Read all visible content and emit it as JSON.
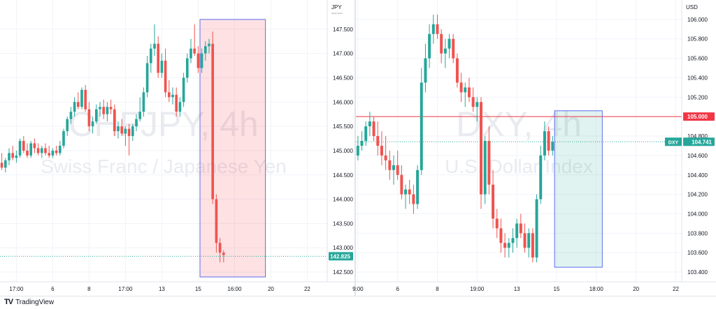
{
  "brand": {
    "logo_text": "TV",
    "name": "TradingView"
  },
  "chart_data": [
    {
      "type": "candlestick",
      "symbol": "CHFJPY, 4h",
      "description": "Swiss Franc / Japanese Yen",
      "currency": "JPY",
      "currency_sub": "Swiss Franc",
      "ylim": [
        142.3,
        148.1
      ],
      "y_ticks": [
        "147.500",
        "147.000",
        "146.500",
        "146.000",
        "145.500",
        "145.000",
        "144.500",
        "144.000",
        "143.500",
        "143.000",
        "142.500"
      ],
      "y_tick_values": [
        147.5,
        147.0,
        146.5,
        146.0,
        145.5,
        145.0,
        144.5,
        144.0,
        143.5,
        143.0,
        142.5
      ],
      "x_ticks": [
        "17:00",
        "6",
        "8",
        "17:00",
        "13",
        "15",
        "16:00",
        "20",
        "22"
      ],
      "x_tick_index": [
        4,
        14,
        24,
        34,
        44,
        54,
        64,
        74,
        84
      ],
      "n_slots": 90,
      "last_price": "142.825",
      "last_price_value": 142.825,
      "highlight": {
        "start": 55,
        "end": 72,
        "top": 147.7,
        "bottom": 142.4,
        "color": "red"
      },
      "candles": [
        {
          "o": 144.75,
          "h": 144.95,
          "l": 144.6,
          "c": 144.65
        },
        {
          "o": 144.65,
          "h": 144.85,
          "l": 144.55,
          "c": 144.8
        },
        {
          "o": 144.8,
          "h": 145.05,
          "l": 144.7,
          "c": 144.95
        },
        {
          "o": 144.95,
          "h": 145.1,
          "l": 144.8,
          "c": 144.85
        },
        {
          "o": 144.85,
          "h": 145.0,
          "l": 144.75,
          "c": 144.9
        },
        {
          "o": 144.9,
          "h": 145.25,
          "l": 144.85,
          "c": 145.2
        },
        {
          "o": 145.2,
          "h": 145.3,
          "l": 144.95,
          "c": 145.0
        },
        {
          "o": 145.0,
          "h": 145.15,
          "l": 144.85,
          "c": 144.9
        },
        {
          "o": 144.9,
          "h": 145.2,
          "l": 144.85,
          "c": 145.15
        },
        {
          "o": 145.15,
          "h": 145.25,
          "l": 144.95,
          "c": 145.05
        },
        {
          "o": 145.05,
          "h": 145.15,
          "l": 144.9,
          "c": 144.95
        },
        {
          "o": 144.95,
          "h": 145.1,
          "l": 144.85,
          "c": 145.05
        },
        {
          "o": 145.05,
          "h": 145.15,
          "l": 144.9,
          "c": 144.95
        },
        {
          "o": 144.95,
          "h": 145.1,
          "l": 144.85,
          "c": 144.9
        },
        {
          "o": 144.9,
          "h": 145.05,
          "l": 144.85,
          "c": 145.0
        },
        {
          "o": 145.0,
          "h": 145.1,
          "l": 144.9,
          "c": 144.95
        },
        {
          "o": 144.95,
          "h": 145.2,
          "l": 144.9,
          "c": 145.1
        },
        {
          "o": 145.1,
          "h": 145.45,
          "l": 145.05,
          "c": 145.4
        },
        {
          "o": 145.4,
          "h": 145.7,
          "l": 145.3,
          "c": 145.65
        },
        {
          "o": 145.65,
          "h": 145.9,
          "l": 145.55,
          "c": 145.8
        },
        {
          "o": 145.8,
          "h": 146.1,
          "l": 145.7,
          "c": 146.0
        },
        {
          "o": 146.0,
          "h": 146.2,
          "l": 145.85,
          "c": 145.9
        },
        {
          "o": 145.9,
          "h": 146.3,
          "l": 145.85,
          "c": 146.25
        },
        {
          "o": 146.25,
          "h": 146.35,
          "l": 145.8,
          "c": 145.85
        },
        {
          "o": 145.85,
          "h": 146.0,
          "l": 145.4,
          "c": 145.5
        },
        {
          "o": 145.5,
          "h": 145.7,
          "l": 145.35,
          "c": 145.6
        },
        {
          "o": 145.6,
          "h": 145.95,
          "l": 145.55,
          "c": 145.85
        },
        {
          "o": 145.85,
          "h": 146.0,
          "l": 145.7,
          "c": 145.9
        },
        {
          "o": 145.9,
          "h": 146.05,
          "l": 145.65,
          "c": 145.75
        },
        {
          "o": 145.75,
          "h": 146.0,
          "l": 145.6,
          "c": 145.9
        },
        {
          "o": 145.9,
          "h": 146.05,
          "l": 145.75,
          "c": 145.85
        },
        {
          "o": 145.85,
          "h": 145.95,
          "l": 145.3,
          "c": 145.4
        },
        {
          "o": 145.4,
          "h": 145.6,
          "l": 145.25,
          "c": 145.5
        },
        {
          "o": 145.5,
          "h": 145.65,
          "l": 145.3,
          "c": 145.35
        },
        {
          "o": 145.35,
          "h": 145.5,
          "l": 145.1,
          "c": 145.45
        },
        {
          "o": 145.45,
          "h": 145.55,
          "l": 144.9,
          "c": 145.3
        },
        {
          "o": 145.3,
          "h": 145.55,
          "l": 145.2,
          "c": 145.5
        },
        {
          "o": 145.5,
          "h": 145.75,
          "l": 145.4,
          "c": 145.65
        },
        {
          "o": 145.65,
          "h": 146.1,
          "l": 145.6,
          "c": 145.8
        },
        {
          "o": 145.8,
          "h": 146.3,
          "l": 145.7,
          "c": 146.2
        },
        {
          "o": 146.2,
          "h": 146.95,
          "l": 146.1,
          "c": 146.8
        },
        {
          "o": 146.8,
          "h": 147.2,
          "l": 146.6,
          "c": 147.1
        },
        {
          "o": 147.1,
          "h": 147.6,
          "l": 146.95,
          "c": 147.2
        },
        {
          "o": 147.2,
          "h": 147.35,
          "l": 146.5,
          "c": 146.6
        },
        {
          "o": 146.6,
          "h": 147.0,
          "l": 146.5,
          "c": 146.85
        },
        {
          "o": 146.85,
          "h": 147.1,
          "l": 146.1,
          "c": 146.2
        },
        {
          "o": 146.2,
          "h": 146.45,
          "l": 146.0,
          "c": 146.1
        },
        {
          "o": 146.1,
          "h": 146.3,
          "l": 145.95,
          "c": 146.15
        },
        {
          "o": 146.15,
          "h": 146.3,
          "l": 145.7,
          "c": 145.8
        },
        {
          "o": 145.8,
          "h": 146.1,
          "l": 145.7,
          "c": 146.0
        },
        {
          "o": 146.0,
          "h": 146.6,
          "l": 145.9,
          "c": 146.5
        },
        {
          "o": 146.5,
          "h": 147.0,
          "l": 146.4,
          "c": 146.9
        },
        {
          "o": 146.9,
          "h": 147.3,
          "l": 146.8,
          "c": 147.1
        },
        {
          "o": 147.1,
          "h": 147.6,
          "l": 146.95,
          "c": 147.0
        },
        {
          "o": 147.0,
          "h": 147.15,
          "l": 146.6,
          "c": 146.7
        },
        {
          "o": 146.7,
          "h": 147.1,
          "l": 146.6,
          "c": 147.0
        },
        {
          "o": 147.0,
          "h": 147.25,
          "l": 146.85,
          "c": 147.15
        },
        {
          "o": 147.15,
          "h": 147.3,
          "l": 147.0,
          "c": 147.2
        },
        {
          "o": 147.2,
          "h": 147.45,
          "l": 143.9,
          "c": 144.0
        },
        {
          "o": 144.0,
          "h": 144.1,
          "l": 142.9,
          "c": 143.1
        },
        {
          "o": 143.1,
          "h": 143.2,
          "l": 142.7,
          "c": 142.9
        },
        {
          "o": 142.9,
          "h": 142.95,
          "l": 142.7,
          "c": 142.85
        }
      ]
    },
    {
      "type": "candlestick",
      "symbol": "DXY, 4h",
      "description": "U.S. Dollar Index",
      "currency": "USD",
      "ylim": [
        103.3,
        106.2
      ],
      "y_ticks": [
        "106.000",
        "105.800",
        "105.600",
        "105.400",
        "105.200",
        "105.000",
        "104.800",
        "104.600",
        "104.400",
        "104.200",
        "104.000",
        "103.800",
        "103.600",
        "103.400"
      ],
      "y_tick_values": [
        106.0,
        105.8,
        105.6,
        105.4,
        105.2,
        105.0,
        104.8,
        104.6,
        104.4,
        104.2,
        104.0,
        103.8,
        103.6,
        103.4
      ],
      "x_ticks": [
        "9:00",
        "6",
        "8",
        "19:00",
        "13",
        "15",
        "18:00",
        "20",
        "22"
      ],
      "x_tick_index": [
        0,
        10,
        20,
        30,
        40,
        50,
        60,
        70,
        80
      ],
      "n_slots": 82,
      "last_price": "104.741",
      "last_price_value": 104.741,
      "tag_label": "DXY",
      "level_line": {
        "value": 105.0,
        "label": "105.000"
      },
      "highlight": {
        "start": 50,
        "end": 61,
        "top": 105.06,
        "bottom": 103.45,
        "color": "green"
      },
      "candles": [
        {
          "o": 104.6,
          "h": 104.8,
          "l": 104.55,
          "c": 104.7
        },
        {
          "o": 104.7,
          "h": 104.85,
          "l": 104.65,
          "c": 104.75
        },
        {
          "o": 104.75,
          "h": 104.95,
          "l": 104.7,
          "c": 104.9
        },
        {
          "o": 104.9,
          "h": 105.05,
          "l": 104.8,
          "c": 104.95
        },
        {
          "o": 104.95,
          "h": 105.0,
          "l": 104.75,
          "c": 104.8
        },
        {
          "o": 104.8,
          "h": 104.95,
          "l": 104.6,
          "c": 104.7
        },
        {
          "o": 104.7,
          "h": 104.85,
          "l": 104.5,
          "c": 104.6
        },
        {
          "o": 104.6,
          "h": 104.8,
          "l": 104.45,
          "c": 104.55
        },
        {
          "o": 104.55,
          "h": 104.65,
          "l": 104.35,
          "c": 104.45
        },
        {
          "o": 104.45,
          "h": 104.6,
          "l": 104.3,
          "c": 104.5
        },
        {
          "o": 104.5,
          "h": 104.65,
          "l": 104.35,
          "c": 104.4
        },
        {
          "o": 104.4,
          "h": 104.5,
          "l": 104.15,
          "c": 104.2
        },
        {
          "o": 104.2,
          "h": 104.3,
          "l": 104.05,
          "c": 104.25
        },
        {
          "o": 104.25,
          "h": 104.35,
          "l": 104.1,
          "c": 104.2
        },
        {
          "o": 104.2,
          "h": 104.3,
          "l": 104.0,
          "c": 104.1
        },
        {
          "o": 104.1,
          "h": 104.5,
          "l": 104.05,
          "c": 104.45
        },
        {
          "o": 104.45,
          "h": 105.5,
          "l": 104.4,
          "c": 105.35
        },
        {
          "o": 105.35,
          "h": 105.75,
          "l": 105.25,
          "c": 105.6
        },
        {
          "o": 105.6,
          "h": 105.95,
          "l": 105.5,
          "c": 105.85
        },
        {
          "o": 105.85,
          "h": 106.05,
          "l": 105.75,
          "c": 105.95
        },
        {
          "o": 105.95,
          "h": 106.05,
          "l": 105.8,
          "c": 105.85
        },
        {
          "o": 105.85,
          "h": 105.9,
          "l": 105.55,
          "c": 105.65
        },
        {
          "o": 105.65,
          "h": 105.8,
          "l": 105.5,
          "c": 105.7
        },
        {
          "o": 105.7,
          "h": 105.85,
          "l": 105.6,
          "c": 105.8
        },
        {
          "o": 105.8,
          "h": 105.85,
          "l": 105.55,
          "c": 105.6
        },
        {
          "o": 105.6,
          "h": 105.65,
          "l": 105.3,
          "c": 105.35
        },
        {
          "o": 105.35,
          "h": 105.45,
          "l": 105.15,
          "c": 105.25
        },
        {
          "o": 105.25,
          "h": 105.35,
          "l": 105.1,
          "c": 105.3
        },
        {
          "o": 105.3,
          "h": 105.4,
          "l": 105.15,
          "c": 105.2
        },
        {
          "o": 105.2,
          "h": 105.3,
          "l": 105.05,
          "c": 105.1
        },
        {
          "o": 105.1,
          "h": 105.2,
          "l": 104.95,
          "c": 105.15
        },
        {
          "o": 105.15,
          "h": 105.2,
          "l": 104.05,
          "c": 104.2
        },
        {
          "o": 104.2,
          "h": 104.8,
          "l": 104.1,
          "c": 104.75
        },
        {
          "o": 104.75,
          "h": 104.9,
          "l": 104.2,
          "c": 104.3
        },
        {
          "o": 104.3,
          "h": 104.45,
          "l": 103.85,
          "c": 103.95
        },
        {
          "o": 103.95,
          "h": 104.05,
          "l": 103.75,
          "c": 103.85
        },
        {
          "o": 103.85,
          "h": 103.95,
          "l": 103.6,
          "c": 103.7
        },
        {
          "o": 103.7,
          "h": 103.8,
          "l": 103.55,
          "c": 103.65
        },
        {
          "o": 103.65,
          "h": 103.75,
          "l": 103.55,
          "c": 103.7
        },
        {
          "o": 103.7,
          "h": 103.85,
          "l": 103.6,
          "c": 103.75
        },
        {
          "o": 103.75,
          "h": 103.95,
          "l": 103.65,
          "c": 103.9
        },
        {
          "o": 103.9,
          "h": 104.0,
          "l": 103.75,
          "c": 103.8
        },
        {
          "o": 103.8,
          "h": 103.9,
          "l": 103.6,
          "c": 103.65
        },
        {
          "o": 103.65,
          "h": 103.85,
          "l": 103.55,
          "c": 103.8
        },
        {
          "o": 103.8,
          "h": 103.85,
          "l": 103.5,
          "c": 103.55
        },
        {
          "o": 103.55,
          "h": 104.2,
          "l": 103.5,
          "c": 104.15
        },
        {
          "o": 104.15,
          "h": 104.7,
          "l": 104.1,
          "c": 104.6
        },
        {
          "o": 104.6,
          "h": 104.95,
          "l": 104.55,
          "c": 104.85
        },
        {
          "o": 104.85,
          "h": 104.9,
          "l": 104.6,
          "c": 104.65
        },
        {
          "o": 104.65,
          "h": 104.8,
          "l": 104.6,
          "c": 104.74
        }
      ]
    }
  ]
}
